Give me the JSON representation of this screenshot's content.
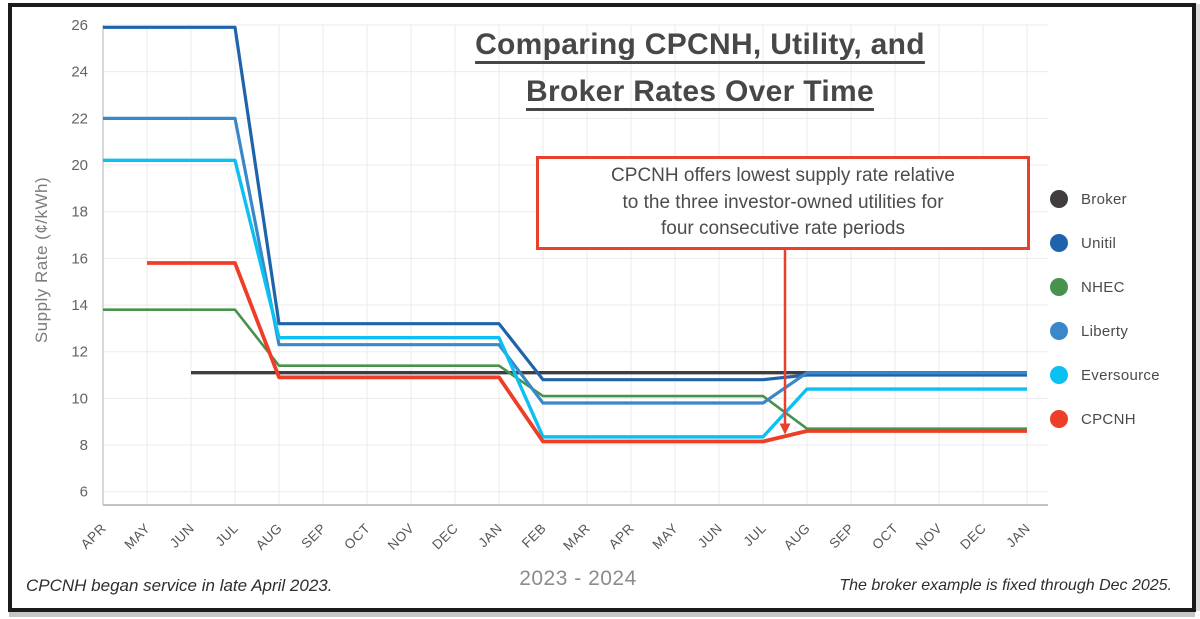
{
  "frame": {
    "border_color": "#1b1b1b",
    "background": "#ffffff"
  },
  "title": {
    "line1": "Comparing CPCNH, Utility, and",
    "line2": "Broker Rates Over Time"
  },
  "annotation": {
    "line1": "CPCNH offers lowest supply rate relative",
    "line2": "to the three investor-owned utilities for",
    "line3": "four consecutive rate periods",
    "border_color": "#e8402c",
    "arrow": {
      "month_index": 15.5,
      "value": 8.45
    }
  },
  "legend": {
    "items": [
      {
        "label": "Broker",
        "color": "#413d3e"
      },
      {
        "label": "Unitil",
        "color": "#1f64ab"
      },
      {
        "label": "NHEC",
        "color": "#47934e"
      },
      {
        "label": "Liberty",
        "color": "#3a87c9"
      },
      {
        "label": "Eversource",
        "color": "#0cc0f1"
      },
      {
        "label": "CPCNH",
        "color": "#ee3e28"
      }
    ]
  },
  "footer": {
    "left": "CPCNH began service in late April 2023.",
    "center": "2023 - 2024",
    "right": "The broker example is fixed through Dec 2025."
  },
  "chart_data": {
    "type": "line",
    "title": "Comparing CPCNH, Utility, and Broker Rates Over Time",
    "xlabel": "",
    "ylabel": "Supply Rate (¢/kWh)",
    "x_labels": [
      "APR",
      "MAY",
      "JUN",
      "JUL",
      "AUG",
      "SEP",
      "OCT",
      "NOV",
      "DEC",
      "JAN",
      "FEB",
      "MAR",
      "APR",
      "MAY",
      "JUN",
      "JUL",
      "AUG",
      "SEP",
      "OCT",
      "NOV",
      "DEC",
      "JAN"
    ],
    "x_span": "April 2023 through January 2025",
    "ylim": [
      6,
      26
    ],
    "ytick_step": 2,
    "grid": true,
    "legend_position": "right",
    "series": [
      {
        "name": "Broker",
        "color": "#413d3e",
        "stroke_width": 3.4,
        "points": [
          [
            2,
            11.1
          ],
          [
            21,
            11.1
          ]
        ]
      },
      {
        "name": "Unitil",
        "color": "#1f64ab",
        "stroke_width": 3.2,
        "points": [
          [
            0,
            25.9
          ],
          [
            3,
            25.9
          ],
          [
            4,
            13.2
          ],
          [
            9,
            13.2
          ],
          [
            10,
            10.8
          ],
          [
            15,
            10.8
          ],
          [
            16,
            11.0
          ],
          [
            21,
            11.0
          ]
        ]
      },
      {
        "name": "NHEC",
        "color": "#47934e",
        "stroke_width": 2.6,
        "points": [
          [
            0,
            13.8
          ],
          [
            3,
            13.8
          ],
          [
            4,
            11.4
          ],
          [
            9,
            11.4
          ],
          [
            10,
            10.1
          ],
          [
            15,
            10.1
          ],
          [
            16,
            8.7
          ],
          [
            21,
            8.7
          ]
        ]
      },
      {
        "name": "Liberty",
        "color": "#3a87c9",
        "stroke_width": 3.2,
        "points": [
          [
            0,
            22.0
          ],
          [
            3,
            22.0
          ],
          [
            4,
            12.3
          ],
          [
            9,
            12.3
          ],
          [
            10,
            9.8
          ],
          [
            15,
            9.8
          ],
          [
            16,
            11.1
          ],
          [
            21,
            11.1
          ]
        ]
      },
      {
        "name": "Eversource",
        "color": "#0cc0f1",
        "stroke_width": 3.4,
        "points": [
          [
            0,
            20.2
          ],
          [
            3,
            20.2
          ],
          [
            4,
            12.6
          ],
          [
            9,
            12.6
          ],
          [
            10,
            8.35
          ],
          [
            15,
            8.35
          ],
          [
            16,
            10.4
          ],
          [
            21,
            10.4
          ]
        ]
      },
      {
        "name": "CPCNH",
        "color": "#ee3e28",
        "stroke_width": 3.8,
        "points": [
          [
            1,
            15.8
          ],
          [
            3,
            15.8
          ],
          [
            4,
            10.9
          ],
          [
            9,
            10.9
          ],
          [
            10,
            8.15
          ],
          [
            15,
            8.15
          ],
          [
            16,
            8.6
          ],
          [
            21,
            8.6
          ]
        ]
      }
    ]
  }
}
